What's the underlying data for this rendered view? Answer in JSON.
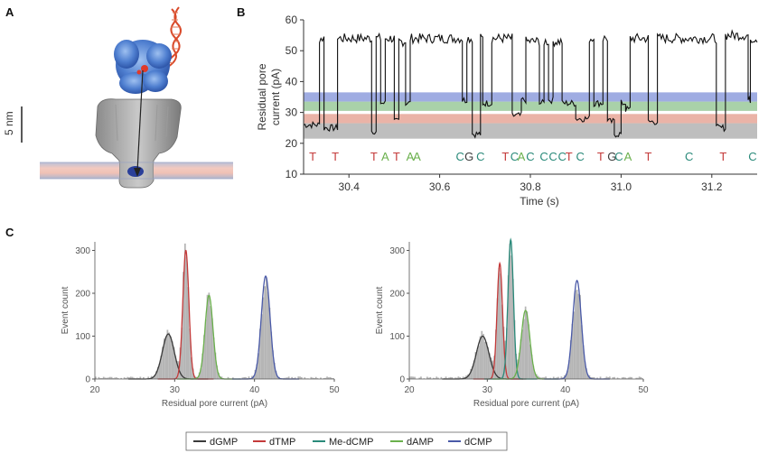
{
  "panels": {
    "a": "A",
    "b": "B",
    "c": "C"
  },
  "panel_a": {
    "scale_label": "5 nm"
  },
  "colors": {
    "dGMP": "#3a3a3a",
    "dTMP": "#c43a3a",
    "Me-dCMP": "#2a8a7a",
    "dAMP": "#6ab04c",
    "dCMP": "#4a5aa8",
    "trace": "#111111",
    "band_blue": "#7f90d8",
    "band_green": "#8cc28c",
    "band_red": "#e39a8a",
    "band_gray": "#a8a8a8"
  },
  "chart_data": [
    {
      "id": "B",
      "type": "line",
      "title": "",
      "xlabel": "Time (s)",
      "ylabel_lines": [
        "Residual pore",
        "current (pA)"
      ],
      "xlim": [
        30.3,
        31.3
      ],
      "ylim": [
        10,
        60
      ],
      "xticks": [
        30.4,
        30.6,
        30.8,
        31.0,
        31.2
      ],
      "xtick_labels": [
        "30.4",
        "30.6",
        "30.8",
        "31.0",
        "31.2"
      ],
      "yticks": [
        10,
        20,
        30,
        40,
        50,
        60
      ],
      "ytick_labels": [
        "10",
        "20",
        "30",
        "40",
        "50",
        "60"
      ],
      "bands": [
        {
          "name": "dCMP",
          "from": 33.5,
          "to": 36.5,
          "color": "#7f90d8"
        },
        {
          "name": "dAMP",
          "from": 30.5,
          "to": 33.5,
          "color": "#8cc28c"
        },
        {
          "name": "dTMP",
          "from": 26.5,
          "to": 29.5,
          "color": "#e39a8a"
        },
        {
          "name": "dGMP",
          "from": 21.5,
          "to": 26.5,
          "color": "#a8a8a8"
        }
      ],
      "trace_segments": [
        {
          "start": 30.3,
          "end": 30.335,
          "level": 26
        },
        {
          "start": 30.335,
          "end": 30.345,
          "level": 54
        },
        {
          "start": 30.345,
          "end": 30.375,
          "level": 25
        },
        {
          "start": 30.375,
          "end": 30.45,
          "level": 54
        },
        {
          "start": 30.45,
          "end": 30.46,
          "level": 24
        },
        {
          "start": 30.46,
          "end": 30.47,
          "level": 54
        },
        {
          "start": 30.47,
          "end": 30.48,
          "level": 33
        },
        {
          "start": 30.48,
          "end": 30.5,
          "level": 54
        },
        {
          "start": 30.5,
          "end": 30.51,
          "level": 27
        },
        {
          "start": 30.51,
          "end": 30.525,
          "level": 53
        },
        {
          "start": 30.525,
          "end": 30.535,
          "level": 33
        },
        {
          "start": 30.535,
          "end": 30.65,
          "level": 54
        },
        {
          "start": 30.65,
          "end": 30.66,
          "level": 34
        },
        {
          "start": 30.66,
          "end": 30.672,
          "level": 54
        },
        {
          "start": 30.672,
          "end": 30.69,
          "level": 23
        },
        {
          "start": 30.69,
          "end": 30.695,
          "level": 54
        },
        {
          "start": 30.695,
          "end": 30.715,
          "level": 33
        },
        {
          "start": 30.715,
          "end": 30.76,
          "level": 54
        },
        {
          "start": 30.76,
          "end": 30.78,
          "level": 29
        },
        {
          "start": 30.78,
          "end": 30.79,
          "level": 34
        },
        {
          "start": 30.79,
          "end": 30.82,
          "level": 53
        },
        {
          "start": 30.82,
          "end": 30.83,
          "level": 33
        },
        {
          "start": 30.83,
          "end": 30.84,
          "level": 53
        },
        {
          "start": 30.84,
          "end": 30.85,
          "level": 34
        },
        {
          "start": 30.85,
          "end": 30.87,
          "level": 53
        },
        {
          "start": 30.87,
          "end": 30.9,
          "level": 33
        },
        {
          "start": 30.9,
          "end": 30.93,
          "level": 28
        },
        {
          "start": 30.93,
          "end": 30.94,
          "level": 54
        },
        {
          "start": 30.94,
          "end": 30.96,
          "level": 33
        },
        {
          "start": 30.96,
          "end": 30.97,
          "level": 54
        },
        {
          "start": 30.97,
          "end": 30.985,
          "level": 27
        },
        {
          "start": 30.985,
          "end": 31.0,
          "level": 23
        },
        {
          "start": 31.0,
          "end": 31.01,
          "level": 33
        },
        {
          "start": 31.01,
          "end": 31.02,
          "level": 31
        },
        {
          "start": 31.02,
          "end": 31.06,
          "level": 54
        },
        {
          "start": 31.06,
          "end": 31.08,
          "level": 27
        },
        {
          "start": 31.08,
          "end": 31.21,
          "level": 54
        },
        {
          "start": 31.21,
          "end": 31.23,
          "level": 25
        },
        {
          "start": 31.23,
          "end": 31.28,
          "level": 55
        },
        {
          "start": 31.28,
          "end": 31.285,
          "level": 34
        },
        {
          "start": 31.285,
          "end": 31.3,
          "level": 54
        }
      ],
      "base_calls": [
        {
          "t": 30.32,
          "base": "T"
        },
        {
          "t": 30.37,
          "base": "T"
        },
        {
          "t": 30.455,
          "base": "T"
        },
        {
          "t": 30.48,
          "base": "A"
        },
        {
          "t": 30.505,
          "base": "T"
        },
        {
          "t": 30.535,
          "base": "A"
        },
        {
          "t": 30.55,
          "base": "A"
        },
        {
          "t": 30.645,
          "base": "C"
        },
        {
          "t": 30.665,
          "base": "G"
        },
        {
          "t": 30.69,
          "base": "C"
        },
        {
          "t": 30.745,
          "base": "T"
        },
        {
          "t": 30.765,
          "base": "C"
        },
        {
          "t": 30.78,
          "base": "A"
        },
        {
          "t": 30.8,
          "base": "C"
        },
        {
          "t": 30.83,
          "base": "C"
        },
        {
          "t": 30.85,
          "base": "C"
        },
        {
          "t": 30.87,
          "base": "C"
        },
        {
          "t": 30.885,
          "base": "T"
        },
        {
          "t": 30.91,
          "base": "C"
        },
        {
          "t": 30.955,
          "base": "T"
        },
        {
          "t": 30.98,
          "base": "G"
        },
        {
          "t": 30.995,
          "base": "C"
        },
        {
          "t": 31.015,
          "base": "A"
        },
        {
          "t": 31.06,
          "base": "T"
        },
        {
          "t": 31.15,
          "base": "C"
        },
        {
          "t": 31.225,
          "base": "T"
        },
        {
          "t": 31.29,
          "base": "C"
        }
      ]
    },
    {
      "id": "C-left",
      "type": "area",
      "xlabel": "Residual pore current (pA)",
      "ylabel": "Event count",
      "xlim": [
        20,
        50
      ],
      "ylim": [
        0,
        320
      ],
      "xticks": [
        20,
        30,
        40,
        50
      ],
      "xtick_labels": [
        "20",
        "30",
        "40",
        "50"
      ],
      "yticks": [
        0,
        100,
        200,
        300
      ],
      "ytick_labels": [
        "0",
        "100",
        "200",
        "300"
      ],
      "series": [
        {
          "name": "dGMP",
          "mean": 29.2,
          "sd": 0.75,
          "peak": 105
        },
        {
          "name": "dTMP",
          "mean": 31.4,
          "sd": 0.38,
          "peak": 300
        },
        {
          "name": "dAMP",
          "mean": 34.3,
          "sd": 0.5,
          "peak": 195
        },
        {
          "name": "dCMP",
          "mean": 41.4,
          "sd": 0.55,
          "peak": 240
        }
      ]
    },
    {
      "id": "C-right",
      "type": "area",
      "xlabel": "Residual pore current (pA)",
      "ylabel": "Event count",
      "xlim": [
        20,
        50
      ],
      "ylim": [
        0,
        320
      ],
      "xticks": [
        20,
        30,
        40,
        50
      ],
      "xtick_labels": [
        "20",
        "30",
        "40",
        "50"
      ],
      "yticks": [
        0,
        100,
        200,
        300
      ],
      "ytick_labels": [
        "0",
        "100",
        "200",
        "300"
      ],
      "series": [
        {
          "name": "dGMP",
          "mean": 29.4,
          "sd": 0.8,
          "peak": 100
        },
        {
          "name": "dTMP",
          "mean": 31.6,
          "sd": 0.35,
          "peak": 270
        },
        {
          "name": "Me-dCMP",
          "mean": 33.0,
          "sd": 0.35,
          "peak": 325
        },
        {
          "name": "dAMP",
          "mean": 34.9,
          "sd": 0.55,
          "peak": 160
        },
        {
          "name": "dCMP",
          "mean": 41.5,
          "sd": 0.55,
          "peak": 230
        }
      ]
    }
  ],
  "legend": {
    "items": [
      {
        "name": "dGMP",
        "label": "dGMP"
      },
      {
        "name": "dTMP",
        "label": "dTMP"
      },
      {
        "name": "Me-dCMP",
        "label": "Me-dCMP"
      },
      {
        "name": "dAMP",
        "label": "dAMP"
      },
      {
        "name": "dCMP",
        "label": "dCMP"
      }
    ]
  }
}
